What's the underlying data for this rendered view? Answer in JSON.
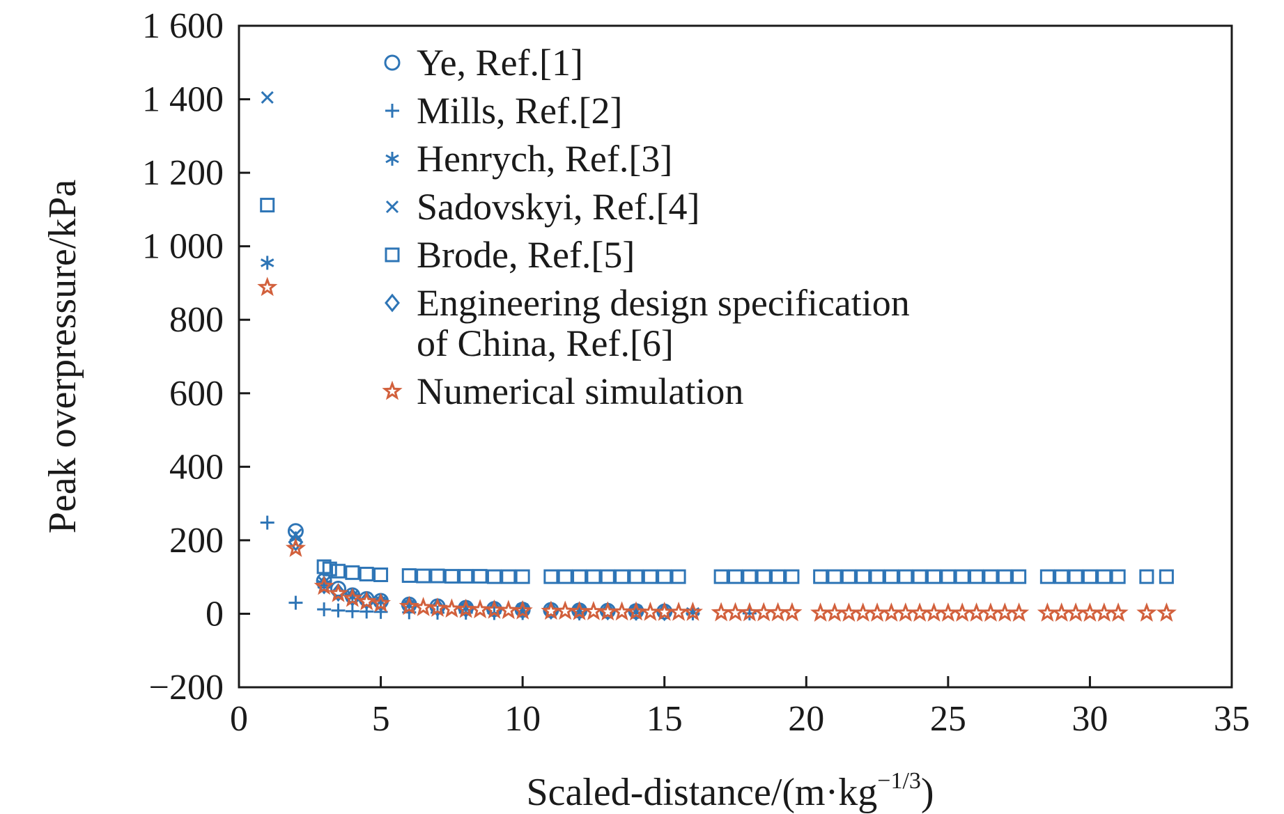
{
  "chart_data": {
    "type": "scatter",
    "title": "",
    "xlabel": "Scaled-distance/(m·kg",
    "xlabel_sup": "−1/3",
    "xlabel_end": ")",
    "ylabel": "Peak overpressure/kPa",
    "xlim": [
      0,
      35
    ],
    "ylim": [
      -200,
      1600
    ],
    "xticks": [
      0,
      5,
      10,
      15,
      20,
      25,
      30,
      35
    ],
    "xtick_labels": [
      "0",
      "5",
      "10",
      "15",
      "20",
      "25",
      "30",
      "35"
    ],
    "yticks": [
      -200,
      0,
      200,
      400,
      600,
      800,
      1000,
      1200,
      1400,
      1600
    ],
    "ytick_labels": [
      "−200",
      "0",
      "200",
      "400",
      "600",
      "800",
      "1 000",
      "1 200",
      "1 400",
      "1 600"
    ],
    "grid": false,
    "legend_position": "upper-left-inside",
    "series": [
      {
        "name": "Ye, Ref.[1]",
        "marker": "circle",
        "color": "#2e75b6",
        "x": [
          2,
          3,
          3.5,
          4,
          4.5,
          5,
          6,
          7,
          8,
          9,
          10,
          11,
          12,
          13,
          14,
          15
        ],
        "y": [
          225,
          90,
          68,
          50,
          40,
          35,
          25,
          20,
          16,
          13,
          11,
          10,
          9,
          8,
          7,
          6
        ]
      },
      {
        "name": "Mills, Ref.[2]",
        "marker": "plus",
        "color": "#2e75b6",
        "x": [
          1,
          2,
          3,
          3.5,
          4,
          4.5,
          5,
          6,
          7,
          8,
          9,
          10,
          12,
          14,
          16,
          18
        ],
        "y": [
          248,
          30,
          12,
          9,
          7,
          6,
          5,
          4,
          3,
          3,
          2,
          2,
          1,
          1,
          1,
          1
        ]
      },
      {
        "name": "Henrych, Ref.[3]",
        "marker": "asterisk",
        "color": "#2e75b6",
        "x": [
          1,
          2,
          3,
          4,
          5,
          6,
          8,
          10,
          12,
          14,
          16
        ],
        "y": [
          955,
          205,
          80,
          45,
          32,
          22,
          15,
          11,
          9,
          7,
          6
        ]
      },
      {
        "name": "Sadovskyi, Ref.[4]",
        "marker": "x",
        "color": "#2e75b6",
        "x": [
          1,
          2,
          3,
          4,
          5,
          6,
          8,
          10,
          12,
          14
        ],
        "y": [
          1405,
          215,
          85,
          48,
          34,
          24,
          16,
          12,
          9,
          8
        ]
      },
      {
        "name": "Brode, Ref.[5]",
        "marker": "square",
        "color": "#2e75b6",
        "x": [
          1,
          3,
          3.2,
          3.5,
          4,
          4.5,
          5,
          6,
          6.5,
          7,
          7.5,
          8,
          8.5,
          9,
          9.5,
          10,
          11,
          11.5,
          12,
          12.5,
          13,
          13.5,
          14,
          14.5,
          15,
          15.5,
          17,
          17.5,
          18,
          18.5,
          19,
          19.5,
          20.5,
          21,
          21.5,
          22,
          22.5,
          23,
          23.5,
          24,
          24.5,
          25,
          25.5,
          26,
          26.5,
          27,
          27.5,
          28.5,
          29,
          29.5,
          30,
          30.5,
          31,
          32,
          32.7
        ],
        "y": [
          1112,
          128,
          122,
          116,
          112,
          108,
          106,
          104,
          103,
          103,
          102,
          102,
          102,
          101,
          101,
          101,
          101,
          101,
          101,
          101,
          101,
          101,
          101,
          101,
          101,
          101,
          101,
          101,
          101,
          101,
          101,
          101,
          101,
          101,
          101,
          101,
          101,
          101,
          101,
          101,
          101,
          101,
          101,
          101,
          101,
          101,
          101,
          101,
          101,
          101,
          101,
          101,
          101,
          101,
          101
        ]
      },
      {
        "name": "Engineering design specification of China, Ref.[6]",
        "name_line1": "Engineering design specification",
        "name_line2": "of China, Ref.[6]",
        "marker": "diamond",
        "color": "#2e75b6",
        "x": [
          2,
          3,
          3.5,
          4,
          4.5,
          5,
          6,
          7,
          8,
          9,
          10,
          11,
          12,
          13,
          14,
          15
        ],
        "y": [
          195,
          78,
          58,
          45,
          36,
          30,
          22,
          17,
          14,
          12,
          10,
          9,
          8,
          7,
          6,
          5
        ]
      },
      {
        "name": "Numerical simulation",
        "marker": "star",
        "color": "#d2603c",
        "x": [
          1,
          2,
          3,
          3.5,
          4,
          4.5,
          5,
          6,
          6.5,
          7,
          7.5,
          8,
          8.5,
          9,
          9.5,
          10,
          11,
          11.5,
          12,
          12.5,
          13,
          13.5,
          14,
          14.5,
          15,
          15.5,
          16,
          17,
          17.5,
          18,
          18.5,
          19,
          19.5,
          20.5,
          21,
          21.5,
          22,
          22.5,
          23,
          23.5,
          24,
          24.5,
          25,
          25.5,
          26,
          26.5,
          27,
          27.5,
          28.5,
          29,
          29.5,
          30,
          30.5,
          31,
          32,
          32.7
        ],
        "y": [
          888,
          178,
          75,
          55,
          42,
          33,
          28,
          20,
          17,
          15,
          13,
          12,
          11,
          10,
          9,
          8,
          7,
          7,
          6,
          6,
          5,
          5,
          5,
          4,
          4,
          4,
          4,
          3,
          3,
          3,
          3,
          3,
          3,
          2,
          2,
          2,
          2,
          2,
          2,
          2,
          2,
          2,
          2,
          2,
          2,
          2,
          2,
          2,
          2,
          2,
          2,
          2,
          2,
          2,
          2,
          2
        ]
      }
    ]
  }
}
